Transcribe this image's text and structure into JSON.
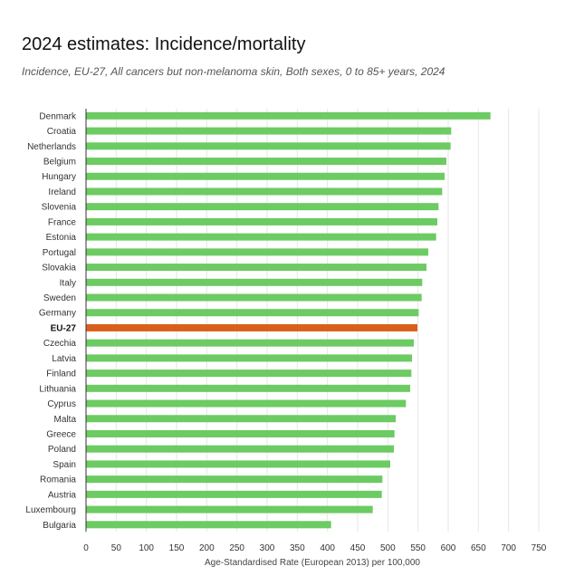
{
  "header": {
    "title": "2024 estimates: Incidence/mortality",
    "subtitle": "Incidence, EU-27, All cancers but non-melanoma skin, Both sexes, 0 to 85+ years, 2024"
  },
  "colors": {
    "bar": "#6ccb62",
    "highlight": "#d9601b",
    "grid": "#e6e6e6",
    "axis": "#333333"
  },
  "chart_data": {
    "type": "bar",
    "orientation": "horizontal",
    "title": "",
    "xlabel": "Age-Standardised Rate (European 2013) per 100,000",
    "ylabel": "",
    "xlim": [
      0,
      750
    ],
    "xticks": [
      0,
      50,
      100,
      150,
      200,
      250,
      300,
      350,
      400,
      450,
      500,
      550,
      600,
      650,
      700,
      750
    ],
    "grid": true,
    "legend": "none",
    "highlight_category": "EU-27",
    "categories": [
      "Denmark",
      "Croatia",
      "Netherlands",
      "Belgium",
      "Hungary",
      "Ireland",
      "Slovenia",
      "France",
      "Estonia",
      "Portugal",
      "Slovakia",
      "Italy",
      "Sweden",
      "Germany",
      "EU-27",
      "Czechia",
      "Latvia",
      "Finland",
      "Lithuania",
      "Cyprus",
      "Malta",
      "Greece",
      "Poland",
      "Spain",
      "Romania",
      "Austria",
      "Luxembourg",
      "Bulgaria"
    ],
    "values": [
      670,
      605,
      604,
      597,
      594,
      590,
      584,
      582,
      580,
      567,
      564,
      557,
      556,
      551,
      549,
      543,
      540,
      539,
      537,
      530,
      513,
      511,
      510,
      504,
      491,
      490,
      475,
      406
    ]
  }
}
